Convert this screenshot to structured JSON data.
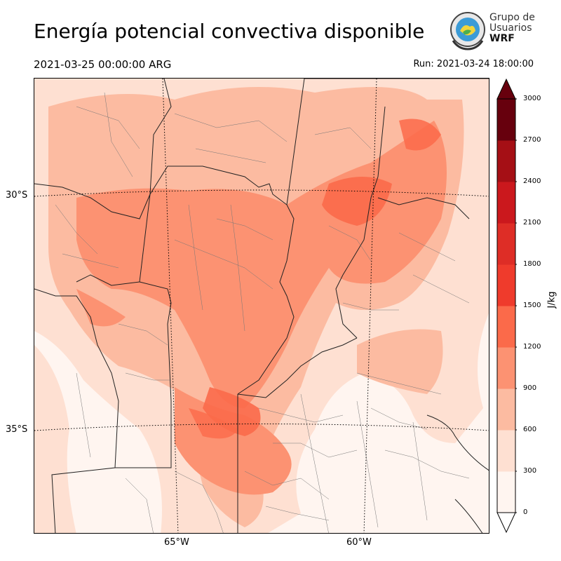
{
  "header": {
    "title": "Energía potencial convectiva disponible",
    "valid_time": "2021-03-25 00:00:00 ARG",
    "run_time": "Run: 2021-03-24 18:00:00"
  },
  "logo": {
    "line1": "Grupo de",
    "line2": "Usuarios",
    "line3": "WRF"
  },
  "map": {
    "lat_labels": [
      "30°S",
      "35°S"
    ],
    "lon_labels": [
      "65°W",
      "60°W"
    ]
  },
  "colorbar": {
    "unit": "J/kg",
    "ticks": [
      "0",
      "300",
      "600",
      "900",
      "1200",
      "1500",
      "1800",
      "2100",
      "2400",
      "2700",
      "3000"
    ],
    "colors": [
      "#fff5f0",
      "#fee0d2",
      "#fcbba1",
      "#fc9272",
      "#fb6a4a",
      "#ef3b2c",
      "#cb181d",
      "#a50f15",
      "#67000d"
    ]
  }
}
